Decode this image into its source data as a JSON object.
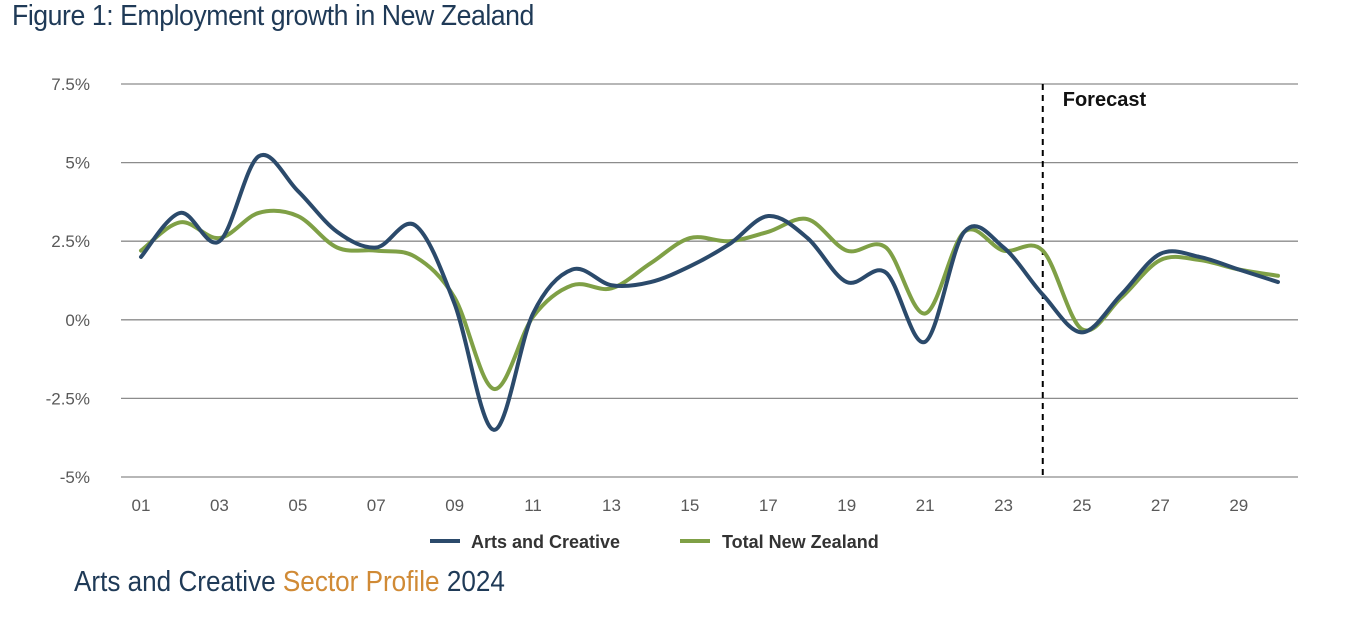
{
  "figure_title": "Figure 1: Employment growth in New Zealand",
  "footer": {
    "part1": "Arts and Creative",
    "part2": "Sector Profile",
    "part3": "2024"
  },
  "colors": {
    "arts": "#2b4a6b",
    "total": "#7fa046",
    "grid": "#888888",
    "text": "#595959",
    "footer_dark": "#1f3a57",
    "footer_accent": "#d08a35"
  },
  "chart_data": {
    "type": "line",
    "title": "Figure 1: Employment growth in New Zealand",
    "xlabel": "",
    "ylabel": "",
    "x": [
      1,
      2,
      3,
      4,
      5,
      6,
      7,
      8,
      9,
      10,
      11,
      12,
      13,
      14,
      15,
      16,
      17,
      18,
      19,
      20,
      21,
      22,
      23,
      24,
      25,
      26,
      27,
      28,
      29,
      30
    ],
    "x_tick_values": [
      1,
      3,
      5,
      7,
      9,
      11,
      13,
      15,
      17,
      19,
      21,
      23,
      25,
      27,
      29
    ],
    "x_tick_labels": [
      "01",
      "03",
      "05",
      "07",
      "09",
      "11",
      "13",
      "15",
      "17",
      "19",
      "21",
      "23",
      "25",
      "27",
      "29"
    ],
    "y_tick_values": [
      -5,
      -2.5,
      0,
      2.5,
      5,
      7.5
    ],
    "y_tick_labels": [
      "-5%",
      "-2.5%",
      "0%",
      "2.5%",
      "5%",
      "7.5%"
    ],
    "ylim": [
      -5,
      7.5
    ],
    "xlim": [
      1,
      30
    ],
    "grid": true,
    "forecast": {
      "x": 24,
      "label": "Forecast"
    },
    "legend_position": "bottom-center",
    "series": [
      {
        "name": "Arts and Creative",
        "color": "#2b4a6b",
        "values": [
          2.0,
          3.4,
          2.5,
          5.2,
          4.1,
          2.8,
          2.3,
          3.0,
          0.5,
          -3.5,
          0.2,
          1.6,
          1.1,
          1.2,
          1.7,
          2.4,
          3.3,
          2.6,
          1.2,
          1.5,
          -0.7,
          2.8,
          2.3,
          0.8,
          -0.4,
          0.8,
          2.1,
          2.0,
          1.6,
          1.2
        ]
      },
      {
        "name": "Total New Zealand",
        "color": "#7fa046",
        "values": [
          2.2,
          3.1,
          2.6,
          3.4,
          3.3,
          2.3,
          2.2,
          2.0,
          0.7,
          -2.2,
          0.1,
          1.1,
          1.0,
          1.8,
          2.6,
          2.5,
          2.8,
          3.2,
          2.2,
          2.3,
          0.2,
          2.8,
          2.2,
          2.2,
          -0.3,
          0.7,
          1.9,
          1.9,
          1.6,
          1.4
        ]
      }
    ]
  }
}
